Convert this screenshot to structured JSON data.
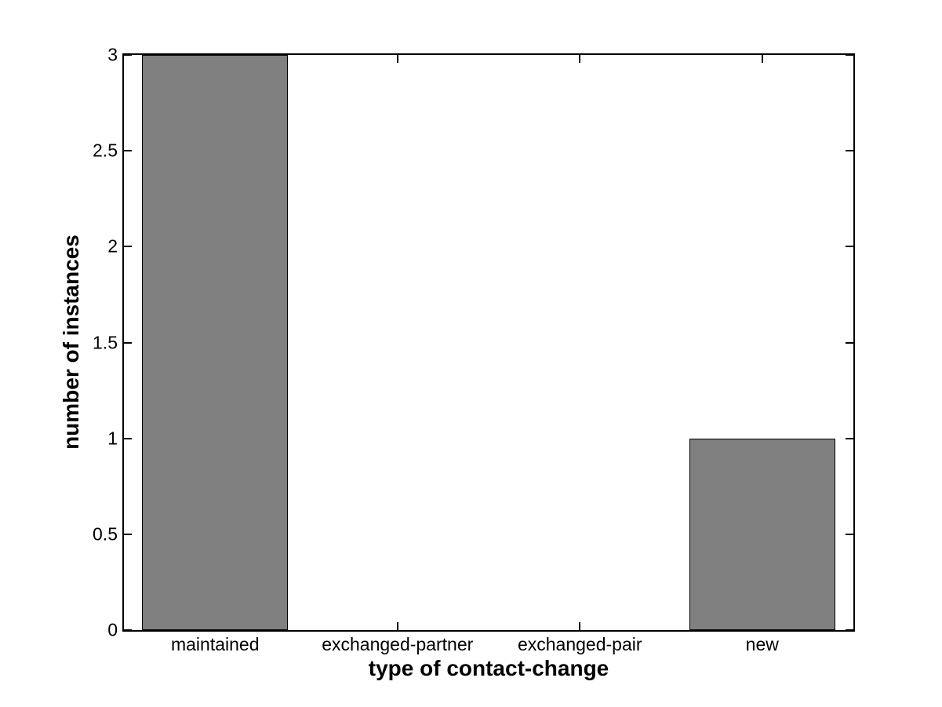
{
  "chart_data": {
    "type": "bar",
    "title": "",
    "xlabel": "type of contact-change",
    "ylabel": "number of instances",
    "categories": [
      "maintained",
      "exchanged-partner",
      "exchanged-pair",
      "new"
    ],
    "values": [
      3,
      0,
      0,
      1
    ],
    "ylim": [
      0,
      3
    ],
    "yticks": [
      0,
      0.5,
      1,
      1.5,
      2,
      2.5,
      3
    ],
    "ytick_labels": [
      "0",
      "0.5",
      "1",
      "1.5",
      "2",
      "2.5",
      "3"
    ],
    "bar_width_fraction": 0.8,
    "bar_color": "#808080",
    "bar_edge_color": "#000000",
    "axis_color": "#000000",
    "background_color": "#ffffff",
    "grid": false,
    "legend": "none"
  }
}
